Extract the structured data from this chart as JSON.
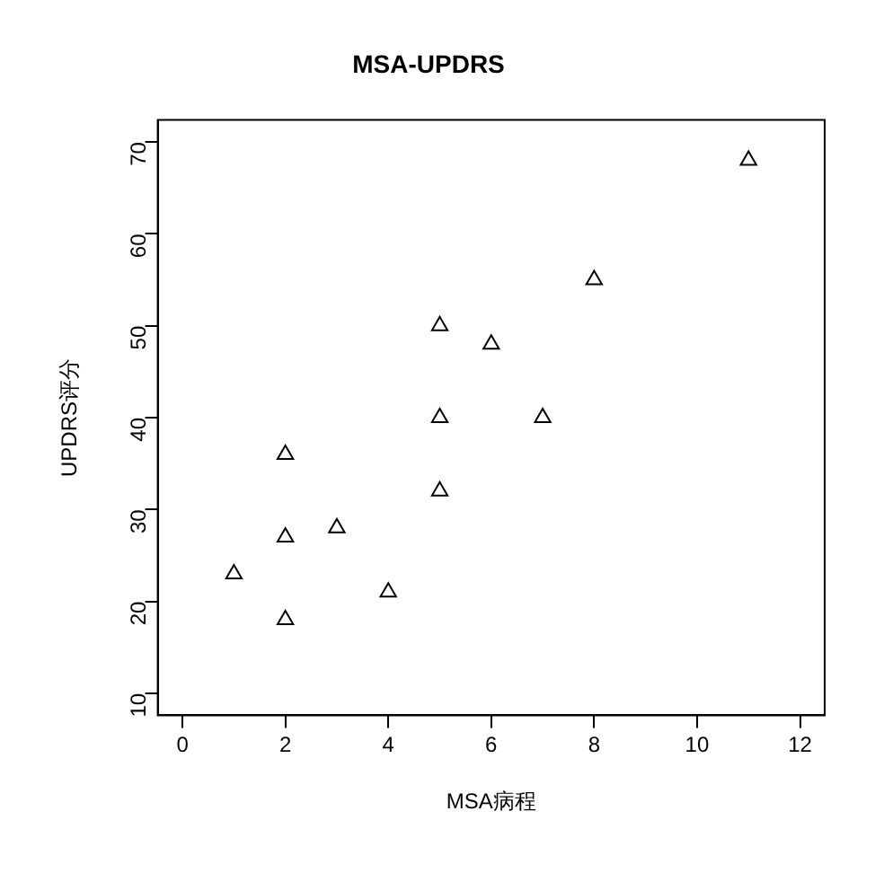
{
  "chart_data": {
    "type": "scatter",
    "title": "MSA-UPDRS",
    "xlabel": "MSA病程",
    "ylabel": "UPDRS评分",
    "x": [
      1,
      2,
      2,
      2,
      3,
      4,
      5,
      5,
      5,
      6,
      7,
      8,
      11
    ],
    "values": [
      23,
      36,
      27,
      18,
      28,
      21,
      50,
      40,
      32,
      48,
      40,
      55,
      68
    ],
    "color": "#000000",
    "marker": "triangle",
    "xlim": [
      -0.48,
      12.48
    ],
    "xticks": [
      0,
      2,
      4,
      6,
      8,
      10,
      12
    ],
    "ylim": [
      7.6,
      72.4
    ],
    "yticks": [
      10,
      20,
      30,
      40,
      50,
      60,
      70
    ],
    "grid": false,
    "legend": false
  }
}
